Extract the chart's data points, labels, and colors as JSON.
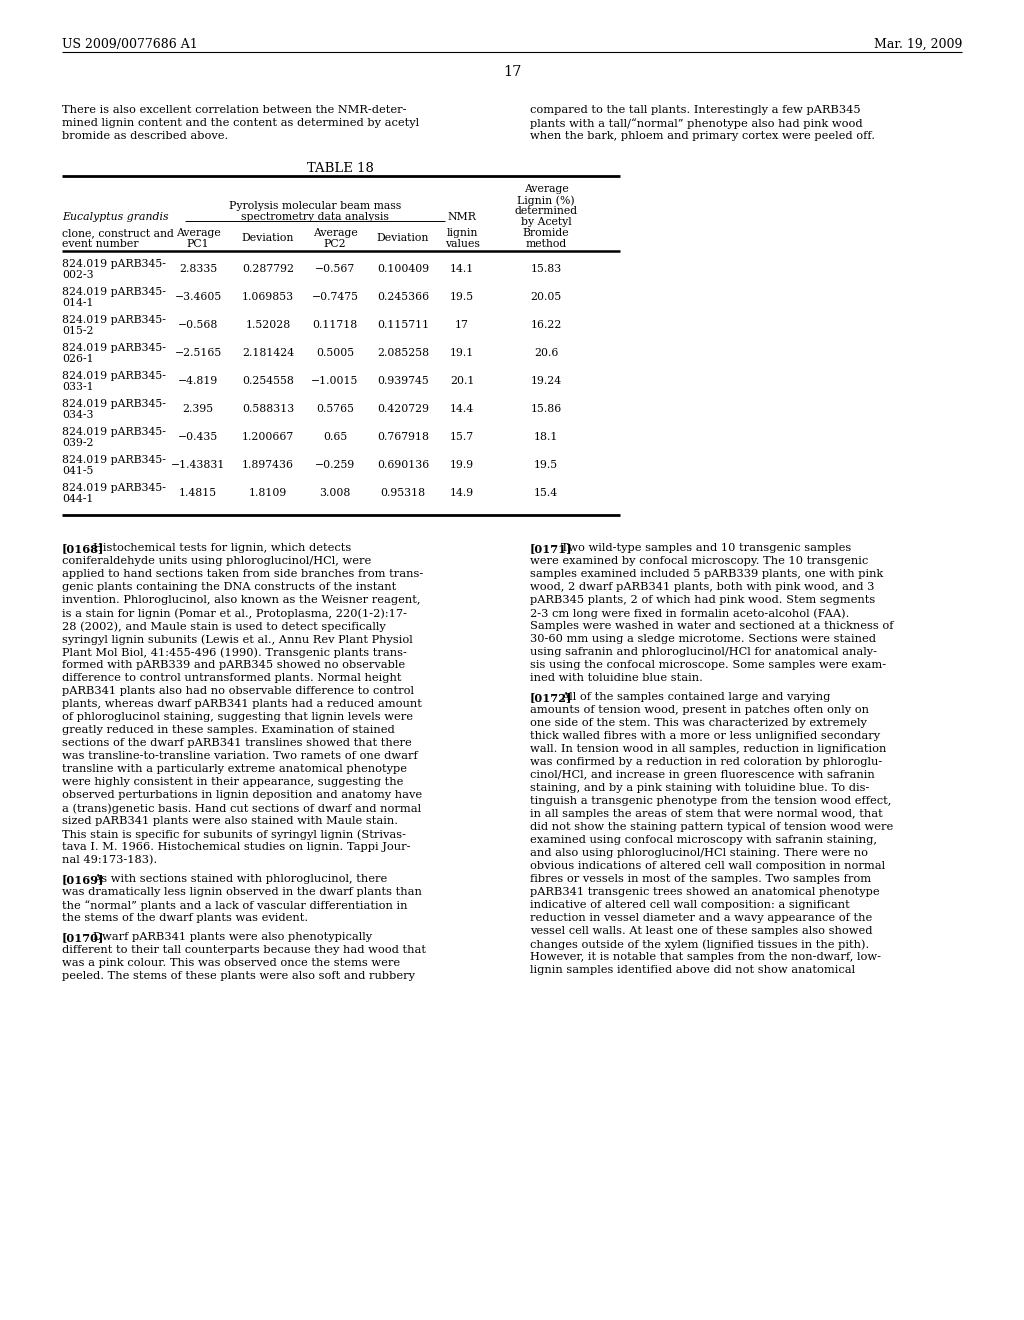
{
  "page_number": "17",
  "header_left": "US 2009/0077686 A1",
  "header_right": "Mar. 19, 2009",
  "background_color": "#ffffff",
  "para_left_1": [
    "There is also excellent correlation between the NMR-deter-",
    "mined lignin content and the content as determined by acetyl",
    "bromide as described above."
  ],
  "para_right_1": [
    "compared to the tall plants. Interestingly a few pARB345",
    "plants with a tall/“normal” phenotype also had pink wood",
    "when the bark, phloem and primary cortex were peeled off."
  ],
  "table_title": "TABLE 18",
  "table_rows": [
    [
      "824.019 pARB345-",
      "002-3",
      "2.8335",
      "0.287792",
      "−0.567",
      "0.100409",
      "14.1",
      "15.83"
    ],
    [
      "824.019 pARB345-",
      "014-1",
      "−3.4605",
      "1.069853",
      "−0.7475",
      "0.245366",
      "19.5",
      "20.05"
    ],
    [
      "824.019 pARB345-",
      "015-2",
      "−0.568",
      "1.52028",
      "0.11718",
      "0.115711",
      "17",
      "16.22"
    ],
    [
      "824.019 pARB345-",
      "026-1",
      "−2.5165",
      "2.181424",
      "0.5005",
      "2.085258",
      "19.1",
      "20.6"
    ],
    [
      "824.019 pARB345-",
      "033-1",
      "−4.819",
      "0.254558",
      "−1.0015",
      "0.939745",
      "20.1",
      "19.24"
    ],
    [
      "824.019 pARB345-",
      "034-3",
      "2.395",
      "0.588313",
      "0.5765",
      "0.420729",
      "14.4",
      "15.86"
    ],
    [
      "824.019 pARB345-",
      "039-2",
      "−0.435",
      "1.200667",
      "0.65",
      "0.767918",
      "15.7",
      "18.1"
    ],
    [
      "824.019 pARB345-",
      "041-5",
      "−1.43831",
      "1.897436",
      "−0.259",
      "0.690136",
      "19.9",
      "19.5"
    ],
    [
      "824.019 pARB345-",
      "044-1",
      "1.4815",
      "1.8109",
      "3.008",
      "0.95318",
      "14.9",
      "15.4"
    ]
  ],
  "left_paragraphs": [
    {
      "tag": "[0168]",
      "lines": [
        "Histochemical tests for lignin, which detects",
        "coniferaldehyde units using phloroglucinol/HCl, were",
        "applied to hand sections taken from side branches from trans-",
        "genic plants containing the DNA constructs of the instant",
        "invention. Phloroglucinol, also known as the Weisner reagent,",
        "is a stain for lignin (Pomar et al., Protoplasma, 220(1-2):17-",
        "28 (2002), and Maule stain is used to detect specifically",
        "syringyl lignin subunits (Lewis et al., Annu Rev Plant Physiol",
        "Plant Mol Biol, 41:455-496 (1990). Transgenic plants trans-",
        "formed with pARB339 and pARB345 showed no observable",
        "difference to control untransformed plants. Normal height",
        "pARB341 plants also had no observable difference to control",
        "plants, whereas dwarf pARB341 plants had a reduced amount",
        "of phloroglucinol staining, suggesting that lignin levels were",
        "greatly reduced in these samples. Examination of stained",
        "sections of the dwarf pARB341 translines showed that there",
        "was transline-to-transline variation. Two ramets of one dwarf",
        "transline with a particularly extreme anatomical phenotype",
        "were highly consistent in their appearance, suggesting the",
        "observed perturbations in lignin deposition and anatomy have",
        "a (trans)genetic basis. Hand cut sections of dwarf and normal",
        "sized pARB341 plants were also stained with Maule stain.",
        "This stain is specific for subunits of syringyl lignin (Strivas-",
        "tava I. M. 1966. Histochemical studies on lignin. Tappi Jour-",
        "nal 49:173-183)."
      ]
    },
    {
      "tag": "[0169]",
      "lines": [
        "As with sections stained with phloroglucinol, there",
        "was dramatically less lignin observed in the dwarf plants than",
        "the “normal” plants and a lack of vascular differentiation in",
        "the stems of the dwarf plants was evident."
      ]
    },
    {
      "tag": "[0170]",
      "lines": [
        "Dwarf pARB341 plants were also phenotypically",
        "different to their tall counterparts because they had wood that",
        "was a pink colour. This was observed once the stems were",
        "peeled. The stems of these plants were also soft and rubbery"
      ]
    }
  ],
  "right_paragraphs": [
    {
      "tag": "[0171]",
      "lines": [
        "Two wild-type samples and 10 transgenic samples",
        "were examined by confocal microscopy. The 10 transgenic",
        "samples examined included 5 pARB339 plants, one with pink",
        "wood, 2 dwarf pARB341 plants, both with pink wood, and 3",
        "pARB345 plants, 2 of which had pink wood. Stem segments",
        "2-3 cm long were fixed in formalin aceto-alcohol (FAA).",
        "Samples were washed in water and sectioned at a thickness of",
        "30-60 mm using a sledge microtome. Sections were stained",
        "using safranin and phloroglucinol/HCl for anatomical analy-",
        "sis using the confocal microscope. Some samples were exam-",
        "ined with toluidine blue stain."
      ]
    },
    {
      "tag": "[0172]",
      "lines": [
        "All of the samples contained large and varying",
        "amounts of tension wood, present in patches often only on",
        "one side of the stem. This was characterized by extremely",
        "thick walled fibres with a more or less unlignified secondary",
        "wall. In tension wood in all samples, reduction in lignification",
        "was confirmed by a reduction in red coloration by phloroglu-",
        "cinol/HCl, and increase in green fluorescence with safranin",
        "staining, and by a pink staining with toluidine blue. To dis-",
        "tinguish a transgenic phenotype from the tension wood effect,",
        "in all samples the areas of stem that were normal wood, that",
        "did not show the staining pattern typical of tension wood were",
        "examined using confocal microscopy with safranin staining,",
        "and also using phloroglucinol/HCl staining. There were no",
        "obvious indications of altered cell wall composition in normal",
        "fibres or vessels in most of the samples. Two samples from",
        "pARB341 transgenic trees showed an anatomical phenotype",
        "indicative of altered cell wall composition: a significant",
        "reduction in vessel diameter and a wavy appearance of the",
        "vessel cell walls. At least one of these samples also showed",
        "changes outside of the xylem (lignified tissues in the pith).",
        "However, it is notable that samples from the non-dwarf, low-",
        "lignin samples identified above did not show anatomical"
      ]
    }
  ]
}
